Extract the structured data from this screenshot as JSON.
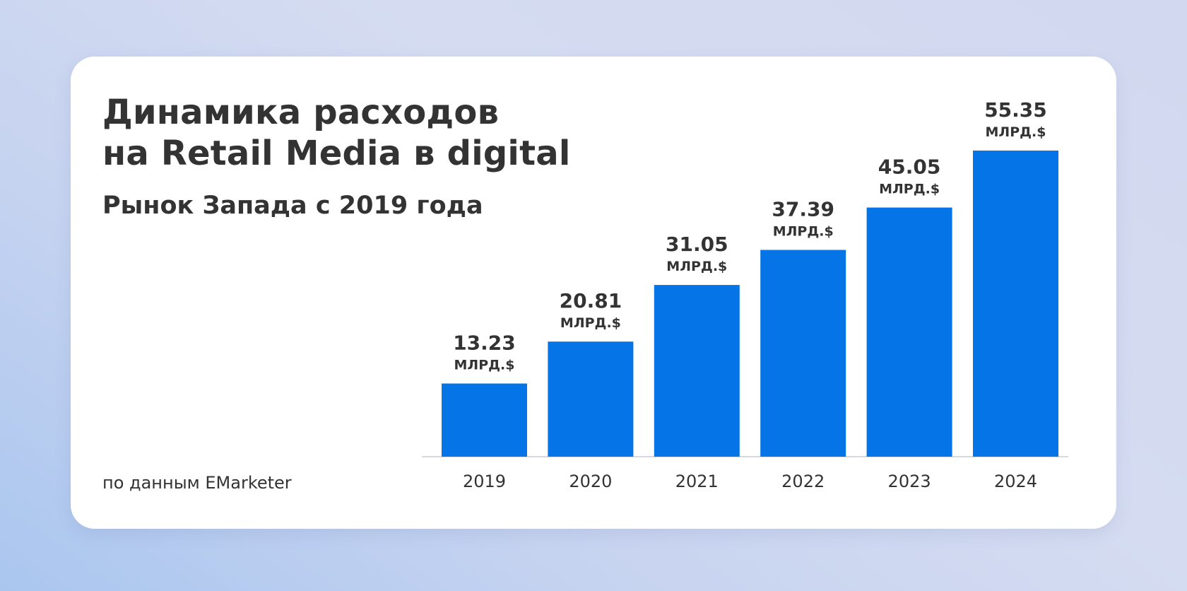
{
  "title_line1": "Динамика расходов",
  "title_line2": "на Retail Media в digital",
  "subtitle": "Рынок Запада с 2019 года",
  "source": "по данным EMarketer",
  "colors": {
    "bar": "#0474e6",
    "text": "#333333",
    "card": "#ffffff"
  },
  "chart_data": {
    "type": "bar",
    "categories": [
      "2019",
      "2020",
      "2021",
      "2022",
      "2023",
      "2024"
    ],
    "values": [
      13.23,
      20.81,
      31.05,
      37.39,
      45.05,
      55.35
    ],
    "value_labels": [
      "13.23",
      "20.81",
      "31.05",
      "37.39",
      "45.05",
      "55.35"
    ],
    "unit_label": "МЛРД.$",
    "title": "Динамика расходов на Retail Media в digital",
    "xlabel": "",
    "ylabel": "",
    "ylim": [
      0,
      55.35
    ],
    "grid": false,
    "legend": "none"
  }
}
